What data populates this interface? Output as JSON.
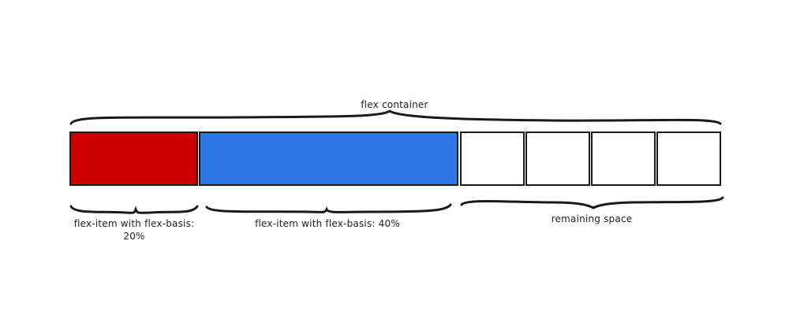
{
  "labels": {
    "container": "flex container",
    "item_1": "flex-item with flex-basis: 20%",
    "item_2": "flex-item with flex-basis: 40%",
    "remaining": "remaining space"
  },
  "items": [
    {
      "name": "flex-item-20",
      "basis_percent": 20,
      "fill": "#cc0000"
    },
    {
      "name": "flex-item-40",
      "basis_percent": 40,
      "fill": "#2b78e4"
    }
  ],
  "remaining_cells": 4,
  "colors": {
    "stroke": "#1a1a1a",
    "item_20": "#cc0000",
    "item_40": "#2b78e4",
    "empty_cell": "#ffffff"
  }
}
